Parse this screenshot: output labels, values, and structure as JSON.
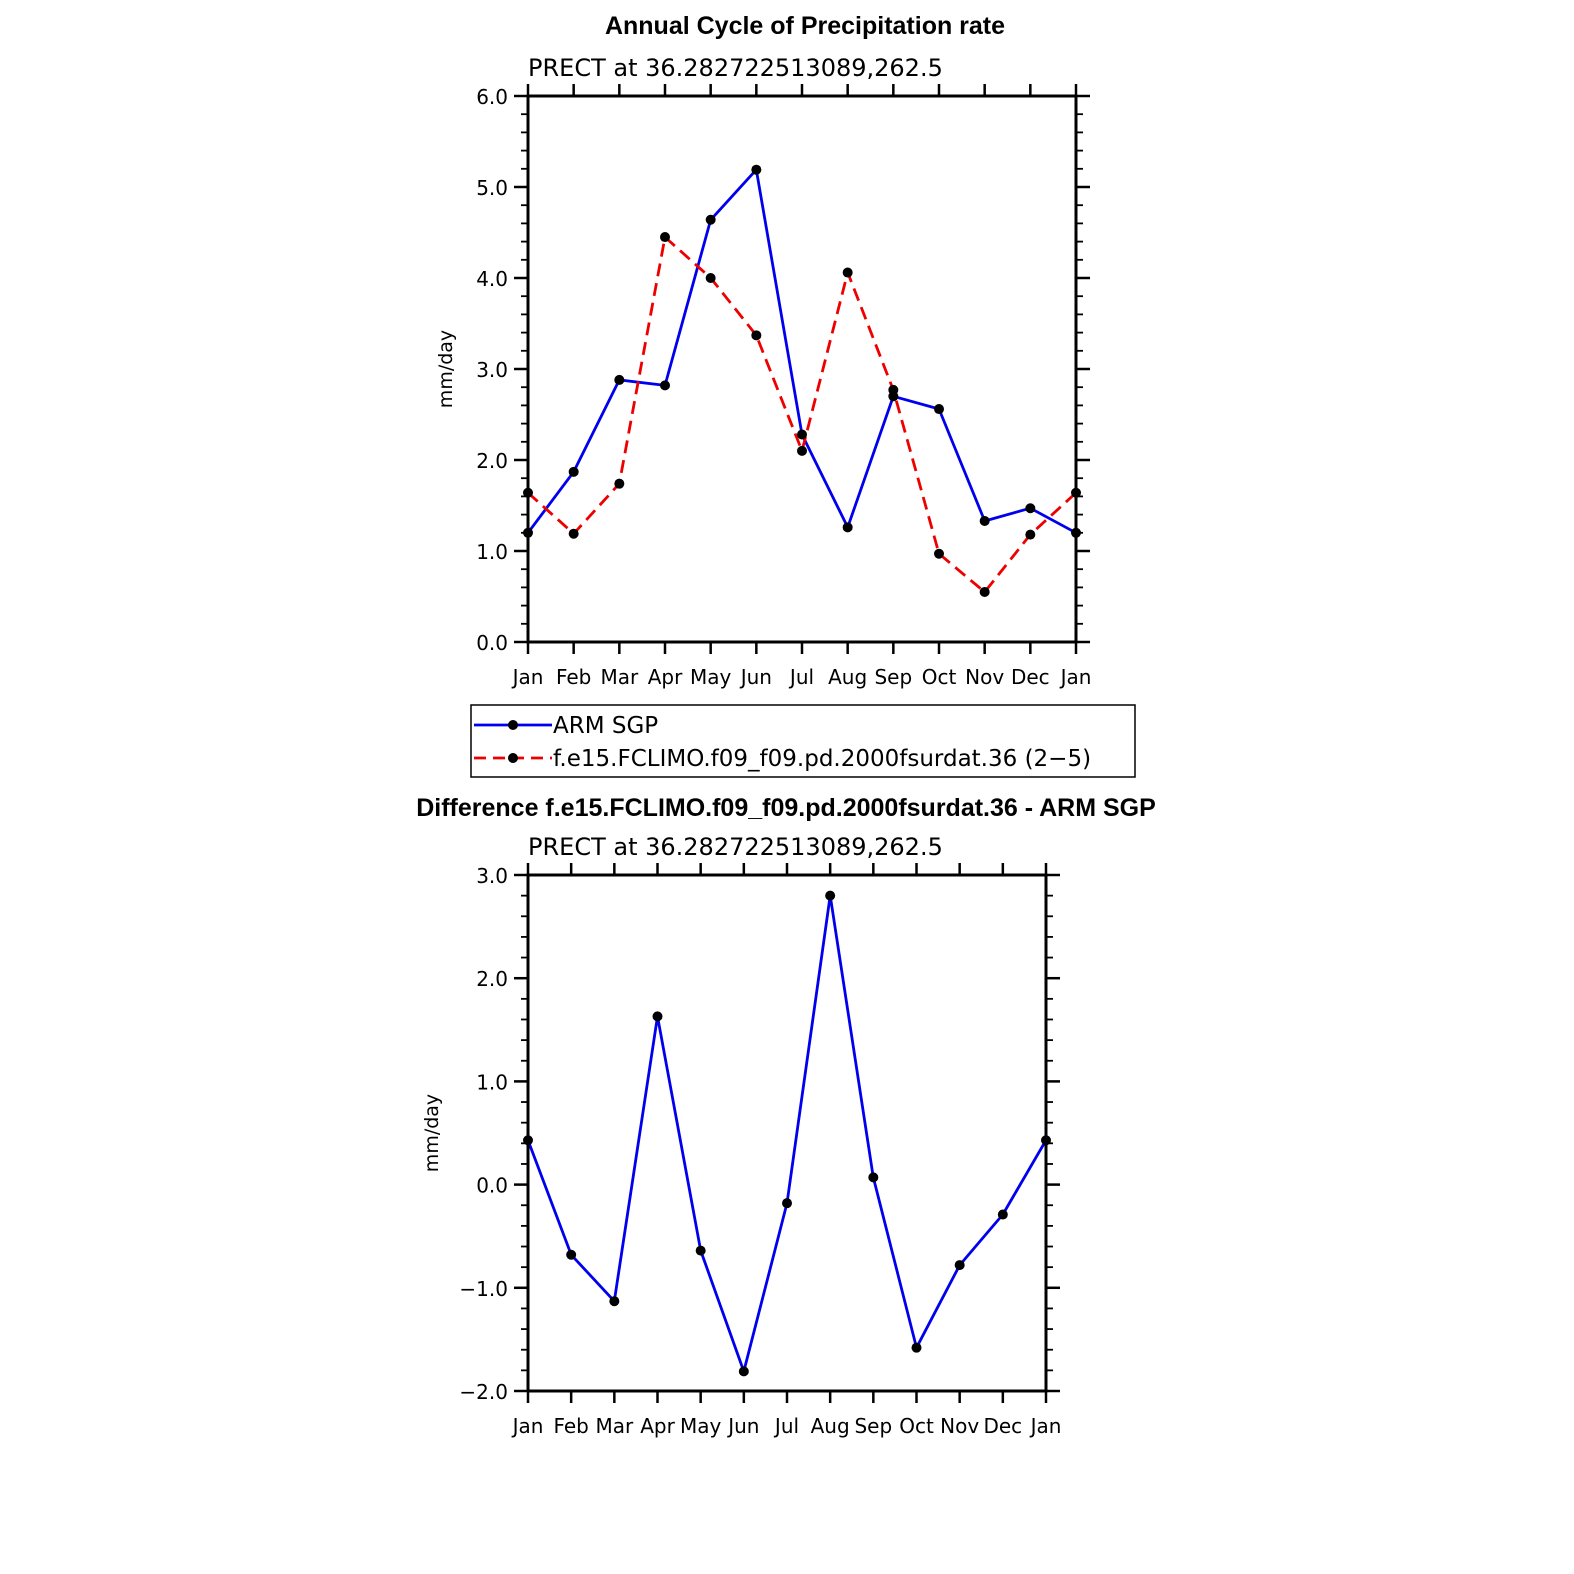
{
  "chart_data": [
    {
      "type": "line",
      "title": "Annual Cycle of Precipitation rate",
      "subtitle": "PRECT at 36.282722513089,262.5",
      "ylabel": "mm/day",
      "xlabel": "",
      "categories": [
        "Jan",
        "Feb",
        "Mar",
        "Apr",
        "May",
        "Jun",
        "Jul",
        "Aug",
        "Sep",
        "Oct",
        "Nov",
        "Dec",
        "Jan"
      ],
      "ylim": [
        0,
        6
      ],
      "yticks": [
        "0.0",
        "1.0",
        "2.0",
        "3.0",
        "4.0",
        "5.0",
        "6.0"
      ],
      "series": [
        {
          "name": "ARM SGP",
          "color": "#0000ee",
          "dash": "solid",
          "values": [
            1.2,
            1.87,
            2.88,
            2.82,
            4.64,
            5.19,
            2.28,
            1.26,
            2.7,
            2.56,
            1.33,
            1.47,
            1.2
          ]
        },
        {
          "name": "f.e15.FCLIMO.f09_f09.pd.2000fsurdat.36 (2−5)",
          "color": "#ee0000",
          "dash": "dashed",
          "values": [
            1.64,
            1.19,
            1.74,
            4.45,
            4.0,
            3.37,
            2.1,
            4.06,
            2.77,
            0.97,
            0.55,
            1.18,
            1.64
          ]
        }
      ],
      "legend": [
        "ARM SGP",
        "f.e15.FCLIMO.f09_f09.pd.2000fsurdat.36 (2−5)"
      ],
      "legend_position": "below"
    },
    {
      "type": "line",
      "title": "Difference f.e15.FCLIMO.f09_f09.pd.2000fsurdat.36 - ARM SGP",
      "subtitle": "PRECT at 36.282722513089,262.5",
      "ylabel": "mm/day",
      "xlabel": "",
      "categories": [
        "Jan",
        "Feb",
        "Mar",
        "Apr",
        "May",
        "Jun",
        "Jul",
        "Aug",
        "Sep",
        "Oct",
        "Nov",
        "Dec",
        "Jan"
      ],
      "ylim": [
        -2,
        3
      ],
      "yticks": [
        "−2.0",
        "−1.0",
        "0.0",
        "1.0",
        "2.0",
        "3.0"
      ],
      "series": [
        {
          "name": "Difference",
          "color": "#0000ee",
          "dash": "solid",
          "values": [
            0.43,
            -0.68,
            -1.13,
            1.63,
            -0.64,
            -1.81,
            -0.18,
            2.8,
            0.07,
            -1.58,
            -0.78,
            -0.29,
            0.43
          ]
        }
      ]
    }
  ]
}
